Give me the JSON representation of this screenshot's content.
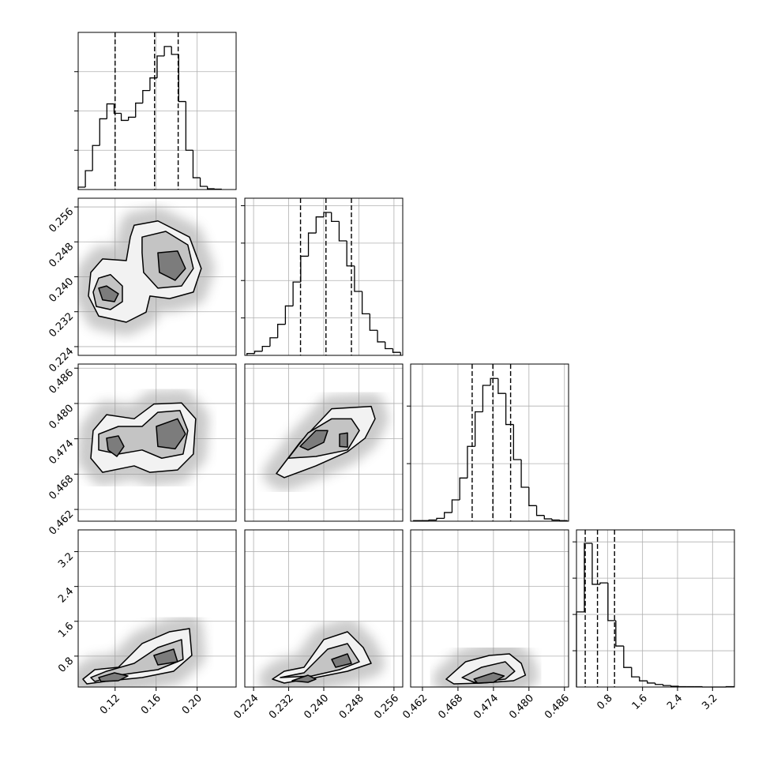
{
  "chart_data": {
    "type": "corner",
    "grid": true,
    "line_color": "#000000",
    "contour_fills": [
      "#f2f2f2",
      "#c4c4c4",
      "#7c7c7c"
    ],
    "params": [
      {
        "lim": [
          0.084,
          0.238
        ],
        "ticks": [
          0.12,
          0.16,
          {
            "value": 0.2,
            "label": "0.20"
          }
        ],
        "quantiles": [
          0.12,
          0.1585,
          0.1815
        ],
        "hist": {
          "bins": [
            0.084,
            0.091,
            0.098,
            0.105,
            0.112,
            0.119,
            0.126,
            0.133,
            0.14,
            0.147,
            0.154,
            0.161,
            0.168,
            0.175,
            0.182,
            0.189,
            0.196,
            0.203,
            0.21,
            0.217,
            0.224
          ],
          "values": [
            0.06,
            0.48,
            1.12,
            1.8,
            2.18,
            1.94,
            1.76,
            1.84,
            2.2,
            2.52,
            2.84,
            3.4,
            3.64,
            3.44,
            2.24,
            1.0,
            0.3,
            0.08,
            0.02,
            0.01
          ],
          "ylim": [
            0,
            4
          ],
          "yticks": [
            1,
            2,
            3
          ]
        }
      },
      {
        "lim": [
          0.222,
          0.258
        ],
        "ticks": [
          0.224,
          0.232,
          {
            "value": 0.24,
            "label": "0.240"
          },
          0.248,
          0.256
        ],
        "quantiles": [
          0.2347,
          0.2405,
          0.2463
        ],
        "hist": {
          "bins": [
            0.2225,
            0.22425,
            0.226,
            0.22775,
            0.2295,
            0.23125,
            0.233,
            0.23475,
            0.2365,
            0.23825,
            0.24,
            0.24175,
            0.2435,
            0.24525,
            0.247,
            0.24875,
            0.2505,
            0.25225,
            0.254,
            0.25575,
            0.2575
          ],
          "values": [
            0.05,
            0.11,
            0.24,
            0.47,
            0.83,
            1.32,
            1.96,
            2.65,
            3.27,
            3.7,
            3.82,
            3.58,
            3.06,
            2.39,
            1.71,
            1.11,
            0.67,
            0.36,
            0.18,
            0.08
          ],
          "ylim": [
            0,
            4.2
          ],
          "yticks": [
            1,
            2,
            3,
            4
          ]
        }
      },
      {
        "lim": [
          0.46,
          0.4867
        ],
        "ticks": [
          0.462,
          0.468,
          0.474,
          {
            "value": 0.48,
            "label": "0.480"
          },
          0.486
        ],
        "quantiles": [
          0.4704,
          0.4739,
          0.4769
        ],
        "hist": {
          "bins": [
            0.4605,
            0.4618,
            0.4631,
            0.4644,
            0.4657,
            0.467,
            0.4683,
            0.4696,
            0.4709,
            0.4722,
            0.4735,
            0.4748,
            0.4761,
            0.4774,
            0.4787,
            0.48,
            0.4813,
            0.4826,
            0.4839,
            0.4852,
            0.4865
          ],
          "values": [
            0.01,
            0.01,
            0.02,
            0.05,
            0.15,
            0.37,
            0.75,
            1.3,
            1.9,
            2.36,
            2.48,
            2.22,
            1.68,
            1.07,
            0.59,
            0.27,
            0.1,
            0.04,
            0.02,
            0.01
          ],
          "ylim": [
            0,
            2.73
          ],
          "yticks": [
            1,
            2
          ]
        }
      },
      {
        "lim": [
          0.09,
          3.7
        ],
        "ticks": [
          0.8,
          1.6,
          2.4,
          3.2
        ],
        "quantiles": [
          0.29,
          0.57,
          0.96
        ],
        "hist": {
          "bins": [
            0.09,
            0.27,
            0.45,
            0.63,
            0.81,
            0.99,
            1.17,
            1.35,
            1.53,
            1.71,
            1.89,
            2.07,
            2.25,
            2.43,
            2.61,
            2.79,
            2.97,
            3.15,
            3.33,
            3.51,
            3.69
          ],
          "values": [
            2.07,
            3.96,
            2.83,
            2.87,
            1.83,
            1.13,
            0.54,
            0.28,
            0.17,
            0.11,
            0.07,
            0.04,
            0.02,
            0.01,
            0.01,
            0.01,
            0,
            0,
            0,
            0.01
          ],
          "ylim": [
            0,
            4.33
          ],
          "yticks": [
            1,
            2,
            3,
            4
          ]
        }
      }
    ],
    "panels": [
      [
        {
          "levels": [
            [
              {
                "x": [
                  0.0963,
                  0.1078,
                  0.1309,
                  0.1348,
                  0.1386,
                  0.1617,
                  0.1925,
                  0.204,
                  0.1963,
                  0.1732,
                  0.154,
                  0.1502,
                  0.1309,
                  0.104,
                  0.094
                ],
                "y": [
                  0.241,
                  0.2441,
                  0.2437,
                  0.2491,
                  0.2518,
                  0.2528,
                  0.2491,
                  0.2419,
                  0.2365,
                  0.235,
                  0.2356,
                  0.2319,
                  0.2296,
                  0.231,
                  0.2356
                ]
              }
            ],
            [
              {
                "x": [
                  0.0986,
                  0.104,
                  0.1155,
                  0.1271,
                  0.1271,
                  0.1155,
                  0.1017
                ],
                "y": [
                  0.2365,
                  0.2397,
                  0.2405,
                  0.2379,
                  0.2343,
                  0.2325,
                  0.2332
                ]
              },
              {
                "x": [
                  0.1463,
                  0.1694,
                  0.1909,
                  0.1963,
                  0.1848,
                  0.1617,
                  0.1478,
                  0.1463
                ],
                "y": [
                  0.2491,
                  0.2504,
                  0.2473,
                  0.2419,
                  0.2379,
                  0.2374,
                  0.241,
                  0.2455
                ]
              }
            ],
            [
              {
                "x": [
                  0.104,
                  0.1117,
                  0.1232,
                  0.1194,
                  0.1078
                ],
                "y": [
                  0.2374,
                  0.2379,
                  0.2361,
                  0.2343,
                  0.2347
                ]
              },
              {
                "x": [
                  0.1617,
                  0.1809,
                  0.1886,
                  0.1786,
                  0.1632
                ],
                "y": [
                  0.2455,
                  0.2459,
                  0.2419,
                  0.2392,
                  0.241
                ]
              }
            ]
          ]
        }
      ],
      [
        {
          "levels": [
            [
              {
                "x": [
                  0.0986,
                  0.1117,
                  0.1386,
                  0.1578,
                  0.1848,
                  0.1986,
                  0.1963,
                  0.1809,
                  0.154,
                  0.1386,
                  0.1078,
                  0.0963
                ],
                "y": [
                  0.4754,
                  0.4781,
                  0.4774,
                  0.4799,
                  0.4801,
                  0.4774,
                  0.4714,
                  0.4687,
                  0.4683,
                  0.4694,
                  0.4683,
                  0.4707
                ]
              }
            ],
            [
              {
                "x": [
                  0.104,
                  0.1232,
                  0.1463,
                  0.1617,
                  0.1832,
                  0.1909,
                  0.1863,
                  0.1655,
                  0.1463,
                  0.1232,
                  0.104
                ],
                "y": [
                  0.4748,
                  0.4761,
                  0.4761,
                  0.4785,
                  0.4788,
                  0.4754,
                  0.4714,
                  0.4707,
                  0.4721,
                  0.4714,
                  0.4721
                ]
              }
            ],
            [
              {
                "x": [
                  0.1117,
                  0.1232,
                  0.1286,
                  0.1217,
                  0.1132
                ],
                "y": [
                  0.4741,
                  0.4745,
                  0.4727,
                  0.471,
                  0.4721
                ]
              },
              {
                "x": [
                  0.1602,
                  0.1809,
                  0.1886,
                  0.1786,
                  0.1617
                ],
                "y": [
                  0.4761,
                  0.4774,
                  0.4748,
                  0.4723,
                  0.4727
                ]
              }
            ]
          ]
        },
        {
          "levels": [
            [
              {
                "x": [
                  0.2292,
                  0.2346,
                  0.2418,
                  0.2508,
                  0.2517,
                  0.2494,
                  0.2454,
                  0.2382,
                  0.231
                ],
                "y": [
                  0.4681,
                  0.4734,
                  0.4791,
                  0.4795,
                  0.4774,
                  0.4741,
                  0.4718,
                  0.4694,
                  0.4674
                ]
              }
            ],
            [
              {
                "x": [
                  0.2319,
                  0.2364,
                  0.2418,
                  0.2463,
                  0.2481,
                  0.2454,
                  0.2382
                ],
                "y": [
                  0.4707,
                  0.475,
                  0.4774,
                  0.4774,
                  0.4754,
                  0.4721,
                  0.471
                ]
              }
            ],
            [
              {
                "x": [
                  0.2346,
                  0.2382,
                  0.2409,
                  0.24,
                  0.2364
                ],
                "y": [
                  0.4727,
                  0.4754,
                  0.4754,
                  0.4734,
                  0.4721
                ]
              },
              {
                "x": [
                  0.2436,
                  0.2454,
                  0.2454,
                  0.2436
                ],
                "y": [
                  0.4748,
                  0.475,
                  0.4726,
                  0.4727
                ]
              }
            ]
          ]
        }
      ],
      [
        {
          "levels": [
            [
              {
                "x": [
                  0.0886,
                  0.1002,
                  0.1232,
                  0.1463,
                  0.1732,
                  0.1925,
                  0.1948,
                  0.1771,
                  0.1463,
                  0.1155,
                  0.0925
                ],
                "y": [
                  0.271,
                  0.489,
                  0.544,
                  1.088,
                  1.36,
                  1.433,
                  0.816,
                  0.453,
                  0.308,
                  0.235,
                  0.163
                ]
              }
            ],
            [
              {
                "x": [
                  0.0963,
                  0.1117,
                  0.1386,
                  0.1617,
                  0.1848,
                  0.1863,
                  0.1617,
                  0.1232,
                  0.1002
                ],
                "y": [
                  0.308,
                  0.453,
                  0.634,
                  0.997,
                  1.179,
                  0.725,
                  0.489,
                  0.362,
                  0.217
                ]
              }
            ],
            [
              {
                "x": [
                  0.104,
                  0.1194,
                  0.1325,
                  0.1232,
                  0.1063
                ],
                "y": [
                  0.308,
                  0.417,
                  0.344,
                  0.235,
                  0.217
                ]
              },
              {
                "x": [
                  0.1578,
                  0.1771,
                  0.1809,
                  0.1617
                ],
                "y": [
                  0.816,
                  0.961,
                  0.671,
                  0.598
                ]
              }
            ]
          ]
        },
        {
          "levels": [
            [
              {
                "x": [
                  0.2283,
                  0.231,
                  0.2355,
                  0.24,
                  0.2454,
                  0.249,
                  0.2508,
                  0.2454,
                  0.2382,
                  0.231
                ],
                "y": [
                  0.271,
                  0.453,
                  0.544,
                  1.179,
                  1.36,
                  0.997,
                  0.634,
                  0.453,
                  0.308,
                  0.181
                ]
              }
            ],
            [
              {
                "x": [
                  0.2301,
                  0.2355,
                  0.2409,
                  0.2454,
                  0.2481,
                  0.2436,
                  0.2373
                ],
                "y": [
                  0.308,
                  0.417,
                  0.961,
                  1.088,
                  0.671,
                  0.489,
                  0.344
                ]
              }
            ],
            [
              {
                "x": [
                  0.2328,
                  0.2364,
                  0.2382,
                  0.2364
                ],
                "y": [
                  0.235,
                  0.362,
                  0.271,
                  0.199
                ]
              },
              {
                "x": [
                  0.2418,
                  0.2454,
                  0.2463,
                  0.2427
                ],
                "y": [
                  0.725,
                  0.852,
                  0.634,
                  0.544
                ]
              }
            ]
          ]
        },
        {
          "levels": [
            [
              {
                "x": [
                  0.466,
                  0.4693,
                  0.4733,
                  0.4767,
                  0.4787,
                  0.4794,
                  0.4774,
                  0.472,
                  0.4673
                ],
                "y": [
                  0.271,
                  0.671,
                  0.816,
                  0.852,
                  0.634,
                  0.362,
                  0.235,
                  0.181,
                  0.163
                ]
              }
            ],
            [
              {
                "x": [
                  0.4687,
                  0.472,
                  0.476,
                  0.4776,
                  0.476,
                  0.4707
                ],
                "y": [
                  0.308,
                  0.544,
                  0.671,
                  0.453,
                  0.271,
                  0.199
                ]
              }
            ],
            [
              {
                "x": [
                  0.4707,
                  0.474,
                  0.4758,
                  0.474,
                  0.4713
                ],
                "y": [
                  0.271,
                  0.417,
                  0.344,
                  0.199,
                  0.181
                ]
              }
            ]
          ]
        }
      ]
    ]
  }
}
